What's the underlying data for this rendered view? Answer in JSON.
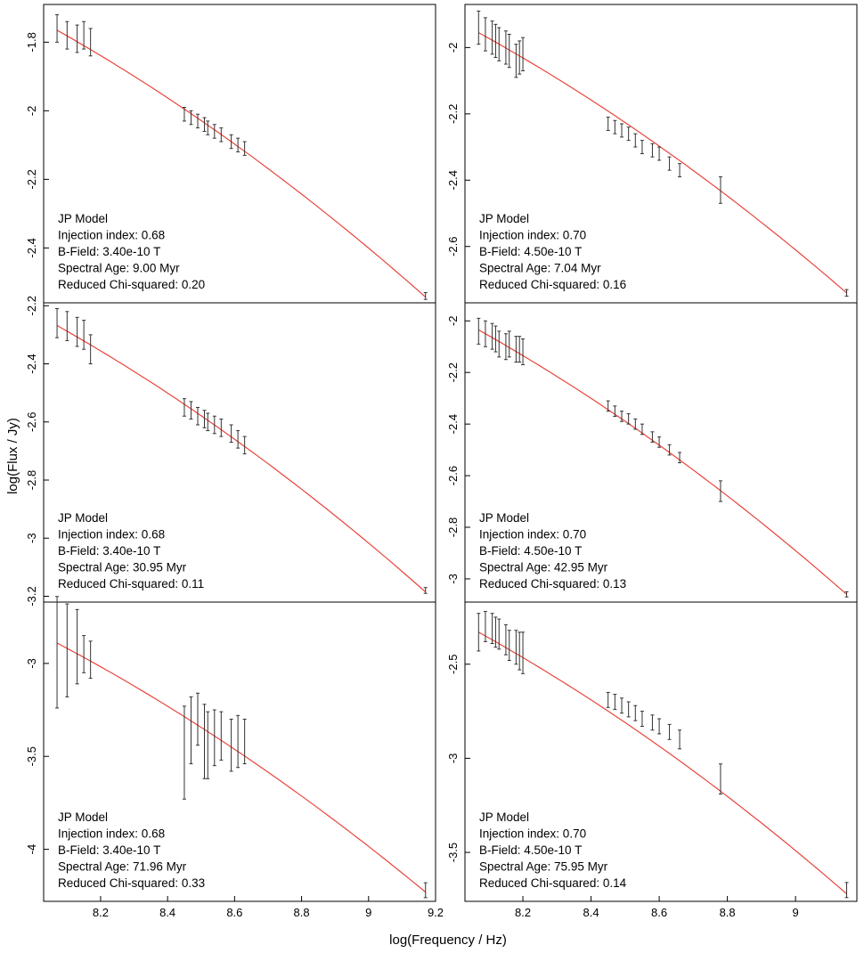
{
  "figure": {
    "xlabel": "log(Frequency / Hz)",
    "ylabel": "log(Flux / Jy)"
  },
  "chart_data": [
    {
      "type": "scatter",
      "row": 0,
      "col": 0,
      "xlim": [
        8.03,
        9.2
      ],
      "ylim": [
        -2.56,
        -1.69
      ],
      "xticks": [],
      "xtick_labels": [],
      "yticks": [
        -1.8,
        -2.0,
        -2.2,
        -2.4
      ],
      "ytick_labels": [
        "-1.8",
        "-2",
        "-2.2",
        "-2.4"
      ],
      "model": {
        "x0": 8.07,
        "x1": 9.17,
        "y0": -1.765,
        "y1": -2.543
      },
      "points": [
        {
          "x": 8.07,
          "y": -1.76,
          "err": 0.04
        },
        {
          "x": 8.1,
          "y": -1.78,
          "err": 0.04
        },
        {
          "x": 8.13,
          "y": -1.79,
          "err": 0.04
        },
        {
          "x": 8.15,
          "y": -1.78,
          "err": 0.04
        },
        {
          "x": 8.17,
          "y": -1.8,
          "err": 0.04
        },
        {
          "x": 8.45,
          "y": -2.01,
          "err": 0.02
        },
        {
          "x": 8.47,
          "y": -2.02,
          "err": 0.02
        },
        {
          "x": 8.49,
          "y": -2.03,
          "err": 0.02
        },
        {
          "x": 8.51,
          "y": -2.04,
          "err": 0.02
        },
        {
          "x": 8.52,
          "y": -2.05,
          "err": 0.02
        },
        {
          "x": 8.54,
          "y": -2.06,
          "err": 0.02
        },
        {
          "x": 8.56,
          "y": -2.07,
          "err": 0.02
        },
        {
          "x": 8.59,
          "y": -2.09,
          "err": 0.02
        },
        {
          "x": 8.61,
          "y": -2.1,
          "err": 0.02
        },
        {
          "x": 8.63,
          "y": -2.11,
          "err": 0.02
        },
        {
          "x": 9.17,
          "y": -2.54,
          "err": 0.01
        }
      ],
      "annotation": [
        "JP Model",
        "Injection index: 0.68",
        "B-Field: 3.40e-10 T",
        "Spectral Age: 9.00 Myr",
        "Reduced Chi-squared: 0.20"
      ]
    },
    {
      "type": "scatter",
      "row": 0,
      "col": 1,
      "xlim": [
        8.03,
        9.18
      ],
      "ylim": [
        -2.77,
        -1.87
      ],
      "xticks": [],
      "xtick_labels": [],
      "yticks": [
        -2.0,
        -2.2,
        -2.4,
        -2.6
      ],
      "ytick_labels": [
        "-2",
        "-2.2",
        "-2.4",
        "-2.6"
      ],
      "model": {
        "x0": 8.07,
        "x1": 9.15,
        "y0": -1.955,
        "y1": -2.74
      },
      "points": [
        {
          "x": 8.07,
          "y": -1.94,
          "err": 0.05
        },
        {
          "x": 8.09,
          "y": -1.96,
          "err": 0.05
        },
        {
          "x": 8.11,
          "y": -1.97,
          "err": 0.05
        },
        {
          "x": 8.12,
          "y": -1.98,
          "err": 0.05
        },
        {
          "x": 8.13,
          "y": -1.99,
          "err": 0.05
        },
        {
          "x": 8.15,
          "y": -2.0,
          "err": 0.05
        },
        {
          "x": 8.16,
          "y": -2.01,
          "err": 0.05
        },
        {
          "x": 8.18,
          "y": -2.04,
          "err": 0.05
        },
        {
          "x": 8.19,
          "y": -2.03,
          "err": 0.05
        },
        {
          "x": 8.2,
          "y": -2.02,
          "err": 0.05
        },
        {
          "x": 8.45,
          "y": -2.23,
          "err": 0.02
        },
        {
          "x": 8.47,
          "y": -2.24,
          "err": 0.02
        },
        {
          "x": 8.49,
          "y": -2.25,
          "err": 0.02
        },
        {
          "x": 8.51,
          "y": -2.26,
          "err": 0.02
        },
        {
          "x": 8.53,
          "y": -2.28,
          "err": 0.02
        },
        {
          "x": 8.55,
          "y": -2.3,
          "err": 0.02
        },
        {
          "x": 8.58,
          "y": -2.31,
          "err": 0.02
        },
        {
          "x": 8.6,
          "y": -2.32,
          "err": 0.02
        },
        {
          "x": 8.63,
          "y": -2.35,
          "err": 0.02
        },
        {
          "x": 8.66,
          "y": -2.37,
          "err": 0.02
        },
        {
          "x": 8.78,
          "y": -2.43,
          "err": 0.04
        },
        {
          "x": 9.15,
          "y": -2.74,
          "err": 0.01
        }
      ],
      "annotation": [
        "JP Model",
        "Injection index: 0.70",
        "B-Field: 4.50e-10 T",
        "Spectral Age: 7.04 Myr",
        "Reduced Chi-squared: 0.16"
      ]
    },
    {
      "type": "scatter",
      "row": 1,
      "col": 0,
      "xlim": [
        8.03,
        9.2
      ],
      "ylim": [
        -3.22,
        -2.19
      ],
      "xticks": [],
      "xtick_labels": [],
      "yticks": [
        -2.2,
        -2.4,
        -2.6,
        -2.8,
        -3.0,
        -3.2
      ],
      "ytick_labels": [
        "-2.2",
        "-2.4",
        "-2.6",
        "-2.8",
        "-3",
        "-3.2"
      ],
      "model": {
        "x0": 8.07,
        "x1": 9.17,
        "y0": -2.268,
        "y1": -3.185
      },
      "points": [
        {
          "x": 8.07,
          "y": -2.26,
          "err": 0.05
        },
        {
          "x": 8.1,
          "y": -2.27,
          "err": 0.05
        },
        {
          "x": 8.13,
          "y": -2.29,
          "err": 0.05
        },
        {
          "x": 8.15,
          "y": -2.3,
          "err": 0.05
        },
        {
          "x": 8.17,
          "y": -2.35,
          "err": 0.05
        },
        {
          "x": 8.45,
          "y": -2.55,
          "err": 0.03
        },
        {
          "x": 8.47,
          "y": -2.56,
          "err": 0.03
        },
        {
          "x": 8.49,
          "y": -2.58,
          "err": 0.03
        },
        {
          "x": 8.51,
          "y": -2.59,
          "err": 0.03
        },
        {
          "x": 8.52,
          "y": -2.6,
          "err": 0.03
        },
        {
          "x": 8.54,
          "y": -2.61,
          "err": 0.03
        },
        {
          "x": 8.56,
          "y": -2.62,
          "err": 0.03
        },
        {
          "x": 8.59,
          "y": -2.64,
          "err": 0.03
        },
        {
          "x": 8.61,
          "y": -2.66,
          "err": 0.03
        },
        {
          "x": 8.63,
          "y": -2.68,
          "err": 0.03
        },
        {
          "x": 9.17,
          "y": -3.18,
          "err": 0.01
        }
      ],
      "annotation": [
        "JP Model",
        "Injection index: 0.68",
        "B-Field: 3.40e-10 T",
        "Spectral Age: 30.95 Myr",
        "Reduced Chi-squared: 0.11"
      ]
    },
    {
      "type": "scatter",
      "row": 1,
      "col": 1,
      "xlim": [
        8.03,
        9.18
      ],
      "ylim": [
        -3.09,
        -1.93
      ],
      "xticks": [],
      "xtick_labels": [],
      "yticks": [
        -2.0,
        -2.2,
        -2.4,
        -2.6,
        -2.8,
        -3.0
      ],
      "ytick_labels": [
        "-2",
        "-2.2",
        "-2.4",
        "-2.6",
        "-2.8",
        "-3"
      ],
      "model": {
        "x0": 8.07,
        "x1": 9.15,
        "y0": -2.035,
        "y1": -3.06
      },
      "points": [
        {
          "x": 8.07,
          "y": -2.04,
          "err": 0.05
        },
        {
          "x": 8.09,
          "y": -2.05,
          "err": 0.05
        },
        {
          "x": 8.11,
          "y": -2.06,
          "err": 0.05
        },
        {
          "x": 8.12,
          "y": -2.07,
          "err": 0.05
        },
        {
          "x": 8.13,
          "y": -2.09,
          "err": 0.05
        },
        {
          "x": 8.15,
          "y": -2.1,
          "err": 0.05
        },
        {
          "x": 8.16,
          "y": -2.09,
          "err": 0.05
        },
        {
          "x": 8.18,
          "y": -2.11,
          "err": 0.05
        },
        {
          "x": 8.19,
          "y": -2.11,
          "err": 0.05
        },
        {
          "x": 8.2,
          "y": -2.12,
          "err": 0.05
        },
        {
          "x": 8.45,
          "y": -2.33,
          "err": 0.02
        },
        {
          "x": 8.47,
          "y": -2.35,
          "err": 0.02
        },
        {
          "x": 8.49,
          "y": -2.37,
          "err": 0.02
        },
        {
          "x": 8.51,
          "y": -2.38,
          "err": 0.02
        },
        {
          "x": 8.53,
          "y": -2.4,
          "err": 0.02
        },
        {
          "x": 8.55,
          "y": -2.42,
          "err": 0.02
        },
        {
          "x": 8.58,
          "y": -2.45,
          "err": 0.02
        },
        {
          "x": 8.6,
          "y": -2.47,
          "err": 0.02
        },
        {
          "x": 8.63,
          "y": -2.5,
          "err": 0.02
        },
        {
          "x": 8.66,
          "y": -2.53,
          "err": 0.02
        },
        {
          "x": 8.78,
          "y": -2.66,
          "err": 0.04
        },
        {
          "x": 9.15,
          "y": -3.06,
          "err": 0.01
        }
      ],
      "annotation": [
        "JP Model",
        "Injection index: 0.70",
        "B-Field: 4.50e-10 T",
        "Spectral Age: 42.95 Myr",
        "Reduced Chi-squared: 0.13"
      ]
    },
    {
      "type": "scatter",
      "row": 2,
      "col": 0,
      "xlim": [
        8.03,
        9.2
      ],
      "ylim": [
        -4.28,
        -2.67
      ],
      "xticks": [
        8.2,
        8.4,
        8.6,
        8.8,
        9.0,
        9.2
      ],
      "xtick_labels": [
        "8.2",
        "8.4",
        "8.6",
        "8.8",
        "9",
        "9.2"
      ],
      "yticks": [
        -3.0,
        -3.5,
        -4.0
      ],
      "ytick_labels": [
        "-3",
        "-3.5",
        "-4"
      ],
      "model": {
        "x0": 8.07,
        "x1": 9.17,
        "y0": -2.89,
        "y1": -4.23
      },
      "points": [
        {
          "x": 8.07,
          "y": -2.94,
          "err": 0.3
        },
        {
          "x": 8.1,
          "y": -2.93,
          "err": 0.25
        },
        {
          "x": 8.13,
          "y": -2.91,
          "err": 0.2
        },
        {
          "x": 8.15,
          "y": -2.95,
          "err": 0.1
        },
        {
          "x": 8.17,
          "y": -2.98,
          "err": 0.1
        },
        {
          "x": 8.45,
          "y": -3.48,
          "err": 0.25
        },
        {
          "x": 8.47,
          "y": -3.36,
          "err": 0.18
        },
        {
          "x": 8.49,
          "y": -3.3,
          "err": 0.14
        },
        {
          "x": 8.51,
          "y": -3.42,
          "err": 0.2
        },
        {
          "x": 8.52,
          "y": -3.44,
          "err": 0.18
        },
        {
          "x": 8.54,
          "y": -3.4,
          "err": 0.15
        },
        {
          "x": 8.56,
          "y": -3.39,
          "err": 0.13
        },
        {
          "x": 8.59,
          "y": -3.44,
          "err": 0.14
        },
        {
          "x": 8.61,
          "y": -3.42,
          "err": 0.14
        },
        {
          "x": 8.63,
          "y": -3.42,
          "err": 0.12
        },
        {
          "x": 9.17,
          "y": -4.22,
          "err": 0.04
        }
      ],
      "annotation": [
        "JP Model",
        "Injection index: 0.68",
        "B-Field: 3.40e-10 T",
        "Spectral Age: 71.96 Myr",
        "Reduced Chi-squared: 0.33"
      ]
    },
    {
      "type": "scatter",
      "row": 2,
      "col": 1,
      "xlim": [
        8.03,
        9.18
      ],
      "ylim": [
        -3.76,
        -2.17
      ],
      "xticks": [
        8.2,
        8.4,
        8.6,
        8.8,
        9.0
      ],
      "xtick_labels": [
        "8.2",
        "8.4",
        "8.6",
        "8.8",
        "9"
      ],
      "yticks": [
        -2.5,
        -3.0,
        -3.5
      ],
      "ytick_labels": [
        "-2.5",
        "-3",
        "-3.5"
      ],
      "model": {
        "x0": 8.07,
        "x1": 9.15,
        "y0": -2.33,
        "y1": -3.72
      },
      "points": [
        {
          "x": 8.07,
          "y": -2.33,
          "err": 0.1
        },
        {
          "x": 8.09,
          "y": -2.3,
          "err": 0.08
        },
        {
          "x": 8.11,
          "y": -2.31,
          "err": 0.08
        },
        {
          "x": 8.12,
          "y": -2.33,
          "err": 0.08
        },
        {
          "x": 8.13,
          "y": -2.34,
          "err": 0.08
        },
        {
          "x": 8.15,
          "y": -2.37,
          "err": 0.08
        },
        {
          "x": 8.16,
          "y": -2.4,
          "err": 0.08
        },
        {
          "x": 8.18,
          "y": -2.41,
          "err": 0.09
        },
        {
          "x": 8.19,
          "y": -2.43,
          "err": 0.1
        },
        {
          "x": 8.2,
          "y": -2.44,
          "err": 0.11
        },
        {
          "x": 8.45,
          "y": -2.69,
          "err": 0.04
        },
        {
          "x": 8.47,
          "y": -2.7,
          "err": 0.04
        },
        {
          "x": 8.49,
          "y": -2.72,
          "err": 0.04
        },
        {
          "x": 8.51,
          "y": -2.74,
          "err": 0.04
        },
        {
          "x": 8.53,
          "y": -2.76,
          "err": 0.04
        },
        {
          "x": 8.55,
          "y": -2.79,
          "err": 0.04
        },
        {
          "x": 8.58,
          "y": -2.81,
          "err": 0.04
        },
        {
          "x": 8.6,
          "y": -2.83,
          "err": 0.04
        },
        {
          "x": 8.63,
          "y": -2.86,
          "err": 0.04
        },
        {
          "x": 8.66,
          "y": -2.9,
          "err": 0.05
        },
        {
          "x": 8.78,
          "y": -3.11,
          "err": 0.08
        },
        {
          "x": 9.15,
          "y": -3.7,
          "err": 0.04
        }
      ],
      "annotation": [
        "JP Model",
        "Injection index: 0.70",
        "B-Field: 4.50e-10 T",
        "Spectral Age: 75.95 Myr",
        "Reduced Chi-squared: 0.14"
      ]
    }
  ],
  "colors": {
    "model_line": "#e8453c",
    "error_bar": "#333333",
    "frame": "#000000"
  }
}
